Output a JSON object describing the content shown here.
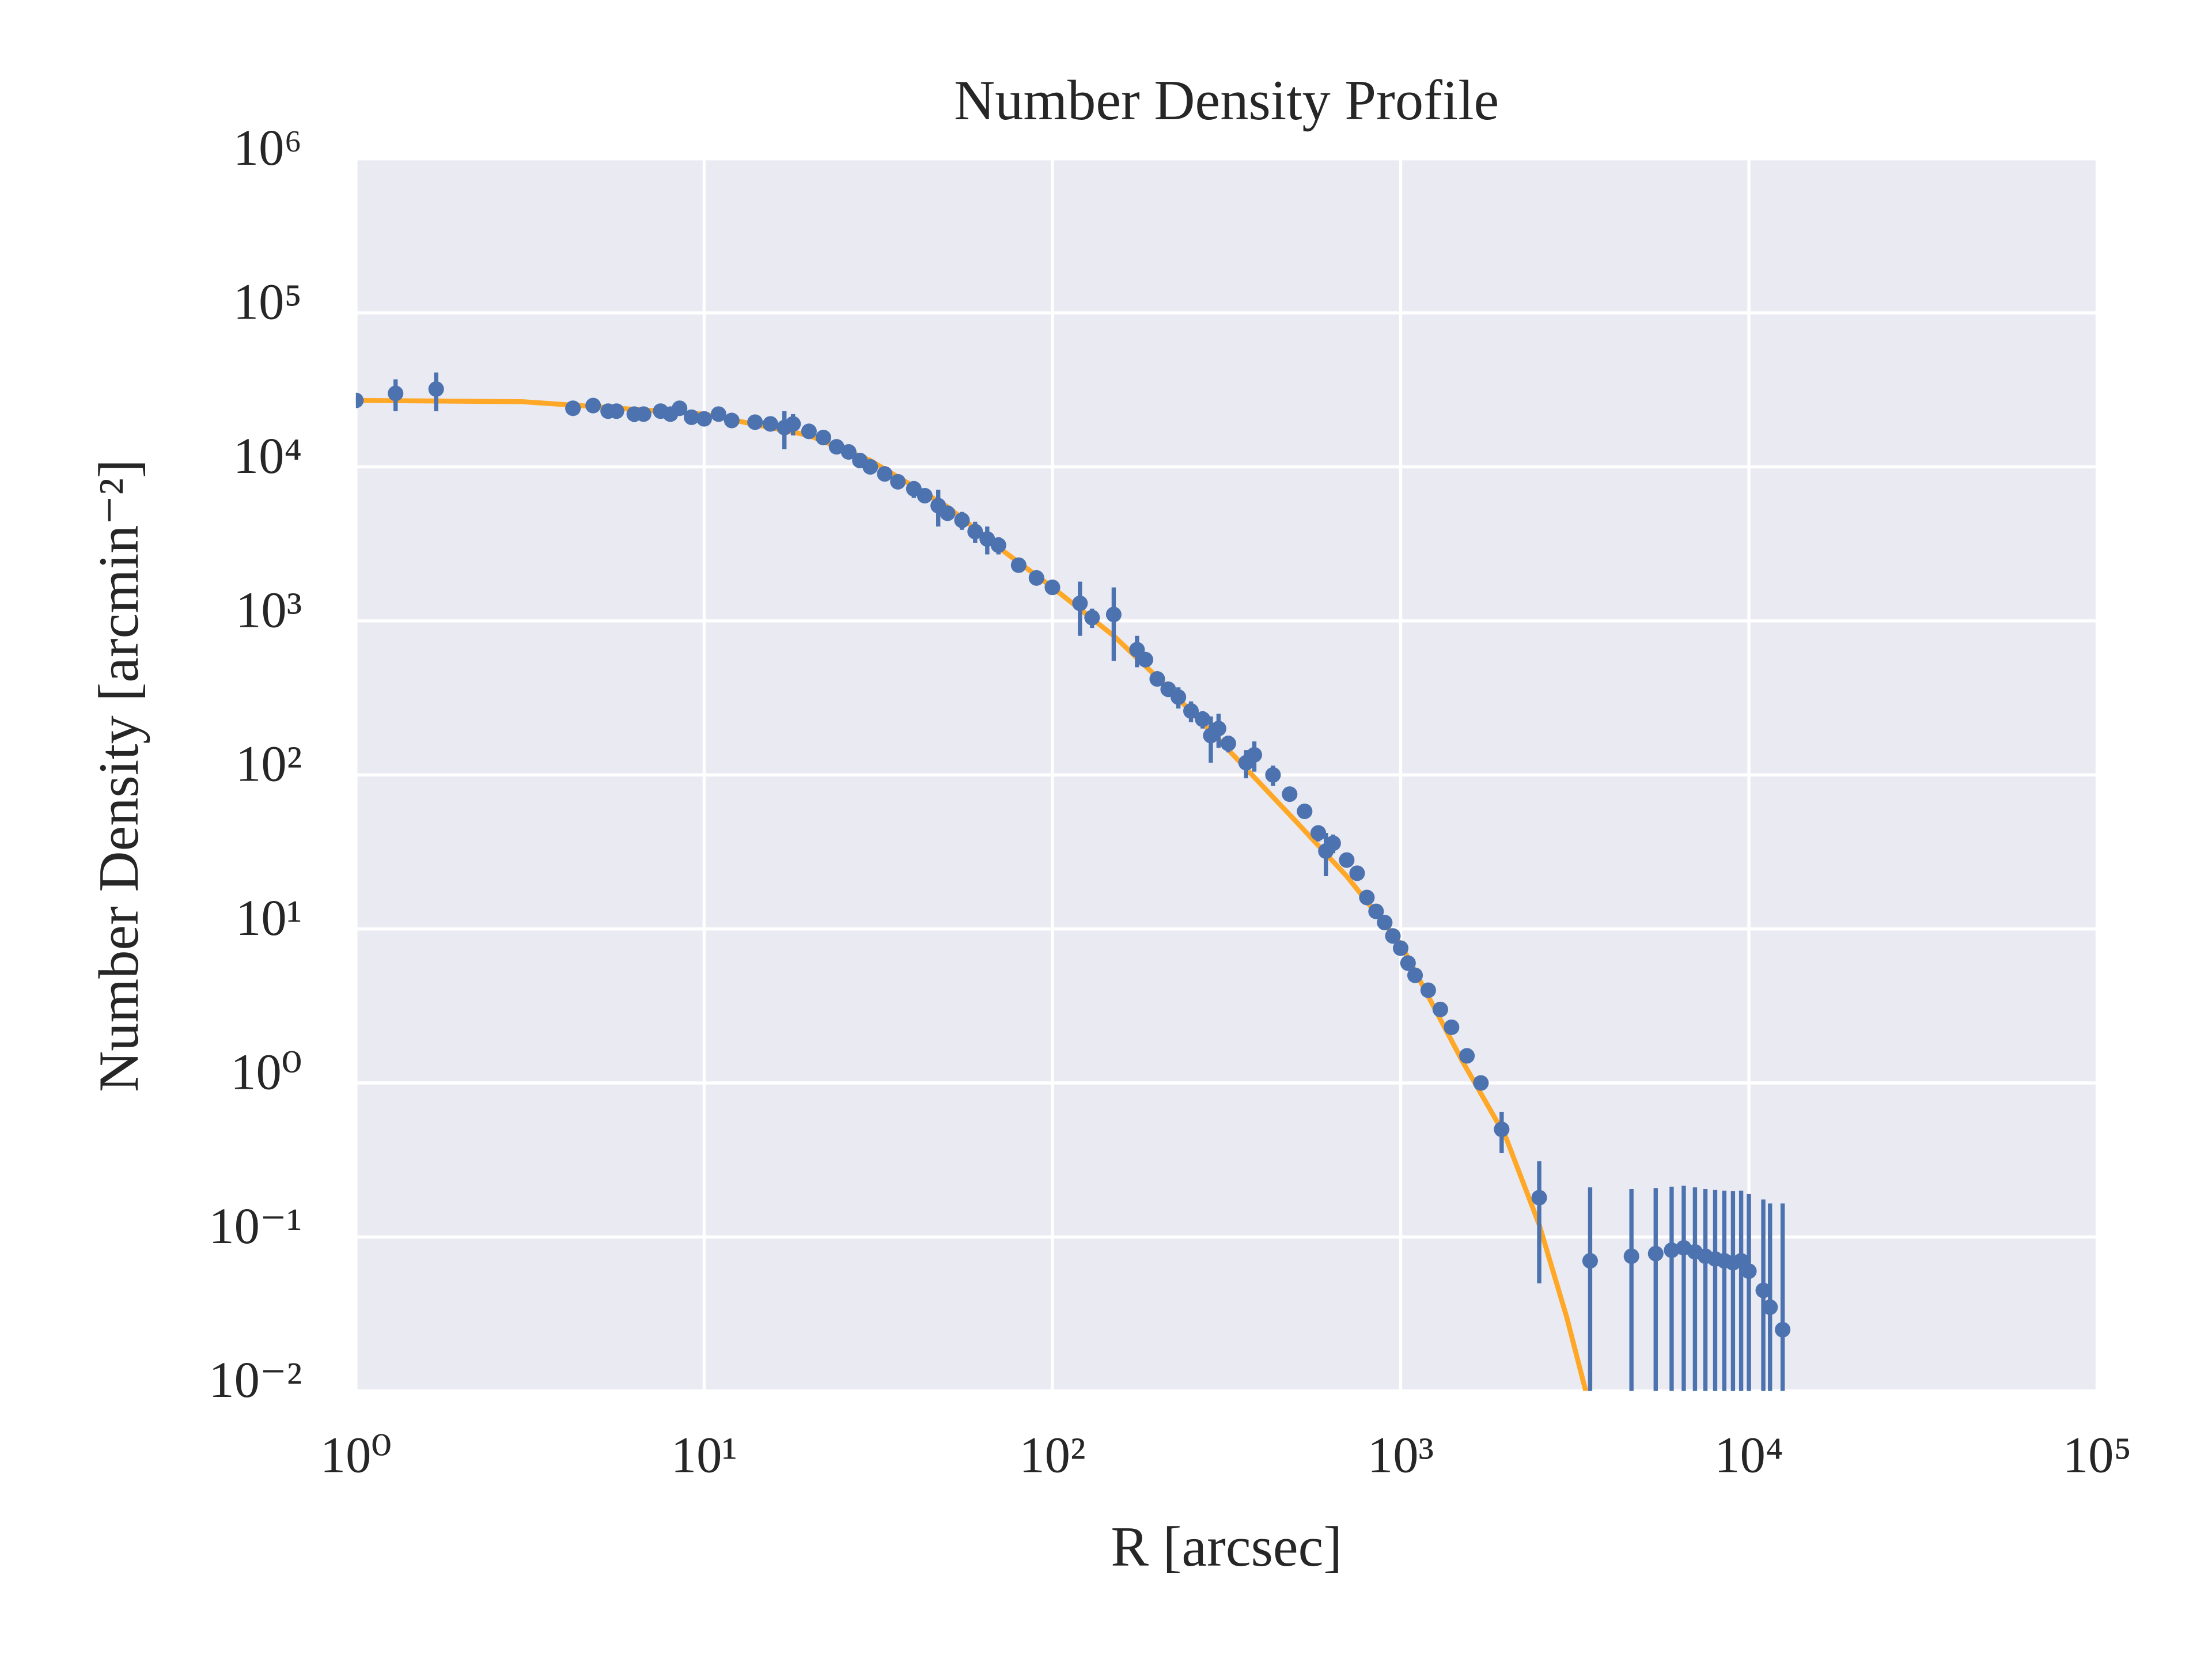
{
  "chart_data": {
    "type": "scatter",
    "title": "Number Density Profile",
    "xlabel": "R [arcsec]",
    "ylabel": "Number Density [arcmin⁻²]",
    "xscale": "log",
    "yscale": "log",
    "grid": true,
    "background": "#eaeaf2",
    "xlim": [
      1,
      100000
    ],
    "ylim": [
      0.01,
      1000000
    ],
    "xticks": [
      {
        "value": 1,
        "label": "10⁰"
      },
      {
        "value": 10,
        "label": "10¹"
      },
      {
        "value": 100,
        "label": "10²"
      },
      {
        "value": 1000,
        "label": "10³"
      },
      {
        "value": 10000,
        "label": "10⁴"
      },
      {
        "value": 100000,
        "label": "10⁵"
      }
    ],
    "yticks": [
      {
        "value": 0.01,
        "label": "10⁻²"
      },
      {
        "value": 0.1,
        "label": "10⁻¹"
      },
      {
        "value": 1,
        "label": "10⁰"
      },
      {
        "value": 10,
        "label": "10¹"
      },
      {
        "value": 100,
        "label": "10²"
      },
      {
        "value": 1000,
        "label": "10³"
      },
      {
        "value": 10000,
        "label": "10⁴"
      },
      {
        "value": 100000,
        "label": "10⁵"
      },
      {
        "value": 1000000,
        "label": "10⁶"
      }
    ],
    "series": [
      {
        "type": "line",
        "color": "#ffa726",
        "x": [
          1,
          3,
          10,
          20,
          30,
          50,
          70,
          100,
          150,
          200,
          300,
          500,
          700,
          1000,
          1500,
          2000,
          2500,
          3000,
          3400
        ],
        "values": [
          27000,
          26500,
          22000,
          16000,
          11000,
          5500,
          3000,
          1650,
          800,
          430,
          170,
          50,
          22,
          8,
          1.4,
          0.45,
          0.12,
          0.03,
          0.01
        ]
      },
      {
        "type": "errorbar",
        "color": "#4c72b0",
        "x": [
          1.0,
          1.3,
          1.7,
          4.2,
          4.8,
          5.3,
          5.6,
          6.3,
          6.7,
          7.5,
          8.0,
          8.5,
          9.2,
          10,
          11,
          12,
          14,
          15.5,
          17,
          18,
          20,
          22,
          24,
          26,
          28,
          30,
          33,
          36,
          40,
          43,
          47,
          50,
          55,
          60,
          65,
          70,
          80,
          90,
          100,
          120,
          130,
          150,
          175,
          185,
          200,
          215,
          230,
          250,
          270,
          285,
          300,
          320,
          360,
          380,
          430,
          480,
          530,
          580,
          610,
          640,
          700,
          750,
          800,
          850,
          900,
          950,
          1000,
          1050,
          1100,
          1200,
          1300,
          1400,
          1550,
          1700,
          1950,
          2500,
          3500,
          4600,
          5400,
          6000,
          6500,
          7000,
          7500,
          8000,
          8500,
          9000,
          9500,
          10000,
          11000,
          11500,
          12500
        ],
        "values": [
          27000,
          30000,
          32000,
          24000,
          25000,
          23000,
          23000,
          22000,
          22000,
          23000,
          22000,
          24000,
          21000,
          20500,
          22000,
          20000,
          19500,
          19000,
          18000,
          19000,
          17000,
          15500,
          13500,
          12500,
          11000,
          10000,
          9000,
          8000,
          7200,
          6500,
          5600,
          5000,
          4500,
          3800,
          3400,
          3100,
          2300,
          1900,
          1650,
          1300,
          1050,
          1100,
          650,
          560,
          420,
          360,
          320,
          260,
          230,
          180,
          200,
          160,
          120,
          135,
          100,
          75,
          58,
          42,
          32,
          36,
          28,
          23,
          16,
          13,
          11,
          9,
          7.5,
          6,
          5,
          4,
          3,
          2.3,
          1.5,
          1.0,
          0.5,
          0.18,
          0.07,
          0.075,
          0.078,
          0.082,
          0.085,
          0.08,
          0.075,
          0.072,
          0.07,
          0.068,
          0.07,
          0.06,
          0.045,
          0.035,
          0.025
        ],
        "errors": [
          1500,
          7000,
          9000,
          2000,
          1500,
          1500,
          1500,
          2500,
          2000,
          2000,
          2000,
          1500,
          1500,
          1500,
          1500,
          2000,
          1000,
          1500,
          5000,
          3000,
          1500,
          1000,
          1000,
          900,
          800,
          700,
          700,
          700,
          900,
          600,
          1500,
          500,
          600,
          600,
          700,
          400,
          200,
          150,
          120,
          500,
          150,
          550,
          150,
          60,
          40,
          40,
          50,
          40,
          30,
          60,
          50,
          20,
          25,
          30,
          15,
          8,
          6,
          5,
          10,
          5,
          3,
          2.5,
          1.5,
          1.2,
          1,
          0.8,
          0.6,
          0.5,
          0.4,
          0.3,
          0.25,
          0.2,
          0.12,
          0.08,
          0.15,
          0.13,
          0.14,
          0.13,
          0.13,
          0.13,
          0.13,
          0.13,
          0.13,
          0.13,
          0.13,
          0.13,
          0.13,
          0.13,
          0.13,
          0.13,
          0.14
        ]
      }
    ]
  }
}
